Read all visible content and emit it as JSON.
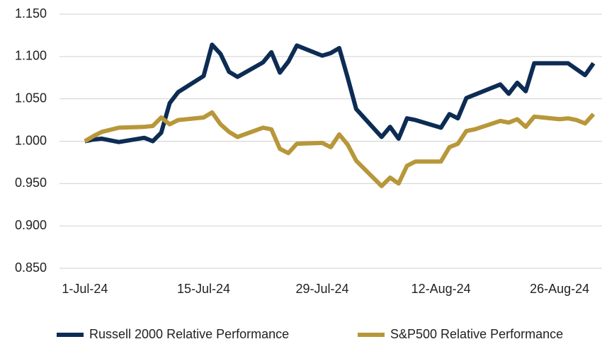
{
  "chart_data": {
    "type": "line",
    "x": [
      "2024-07-01",
      "2024-07-02",
      "2024-07-03",
      "2024-07-05",
      "2024-07-08",
      "2024-07-09",
      "2024-07-10",
      "2024-07-11",
      "2024-07-12",
      "2024-07-15",
      "2024-07-16",
      "2024-07-17",
      "2024-07-18",
      "2024-07-19",
      "2024-07-22",
      "2024-07-23",
      "2024-07-24",
      "2024-07-25",
      "2024-07-26",
      "2024-07-29",
      "2024-07-30",
      "2024-07-31",
      "2024-08-01",
      "2024-08-02",
      "2024-08-05",
      "2024-08-06",
      "2024-08-07",
      "2024-08-08",
      "2024-08-09",
      "2024-08-12",
      "2024-08-13",
      "2024-08-14",
      "2024-08-15",
      "2024-08-16",
      "2024-08-19",
      "2024-08-20",
      "2024-08-21",
      "2024-08-22",
      "2024-08-23",
      "2024-08-26",
      "2024-08-27",
      "2024-08-28",
      "2024-08-29",
      "2024-08-30"
    ],
    "series": [
      {
        "name": "Russell 2000 Relative Performance",
        "color": "#0d2c54",
        "values": [
          1.0,
          1.002,
          1.003,
          0.999,
          1.004,
          1.0,
          1.01,
          1.045,
          1.058,
          1.077,
          1.114,
          1.103,
          1.082,
          1.076,
          1.093,
          1.105,
          1.081,
          1.094,
          1.113,
          1.101,
          1.104,
          1.11,
          1.075,
          1.038,
          1.005,
          1.017,
          1.003,
          1.027,
          1.025,
          1.016,
          1.032,
          1.027,
          1.051,
          1.055,
          1.067,
          1.056,
          1.069,
          1.059,
          1.092,
          1.092,
          1.092,
          1.085,
          1.078,
          1.092
        ]
      },
      {
        "name": "S&P500 Relative Performance",
        "color": "#b8973a",
        "values": [
          1.0,
          1.006,
          1.011,
          1.016,
          1.017,
          1.018,
          1.028,
          1.02,
          1.025,
          1.028,
          1.034,
          1.02,
          1.011,
          1.005,
          1.016,
          1.014,
          0.991,
          0.986,
          0.997,
          0.998,
          0.993,
          1.008,
          0.996,
          0.977,
          0.947,
          0.957,
          0.95,
          0.971,
          0.976,
          0.976,
          0.993,
          0.997,
          1.012,
          1.014,
          1.024,
          1.022,
          1.026,
          1.017,
          1.029,
          1.026,
          1.027,
          1.025,
          1.021,
          1.032
        ]
      }
    ],
    "xlim": [
      "2024-06-28",
      "2024-08-31"
    ],
    "xticks": [
      {
        "value": "2024-07-01",
        "label": "1-Jul-24"
      },
      {
        "value": "2024-07-15",
        "label": "15-Jul-24"
      },
      {
        "value": "2024-07-29",
        "label": "29-Jul-24"
      },
      {
        "value": "2024-08-12",
        "label": "12-Aug-24"
      },
      {
        "value": "2024-08-26",
        "label": "26-Aug-24"
      }
    ],
    "ylim": [
      0.85,
      1.15
    ],
    "yticks": [
      {
        "value": 0.85,
        "label": "0.850"
      },
      {
        "value": 0.9,
        "label": "0.900"
      },
      {
        "value": 0.95,
        "label": "0.950"
      },
      {
        "value": 1.0,
        "label": "1.000"
      },
      {
        "value": 1.05,
        "label": "1.050"
      },
      {
        "value": 1.1,
        "label": "1.100"
      },
      {
        "value": 1.15,
        "label": "1.150"
      }
    ],
    "grid": true,
    "legend": "bottom"
  }
}
